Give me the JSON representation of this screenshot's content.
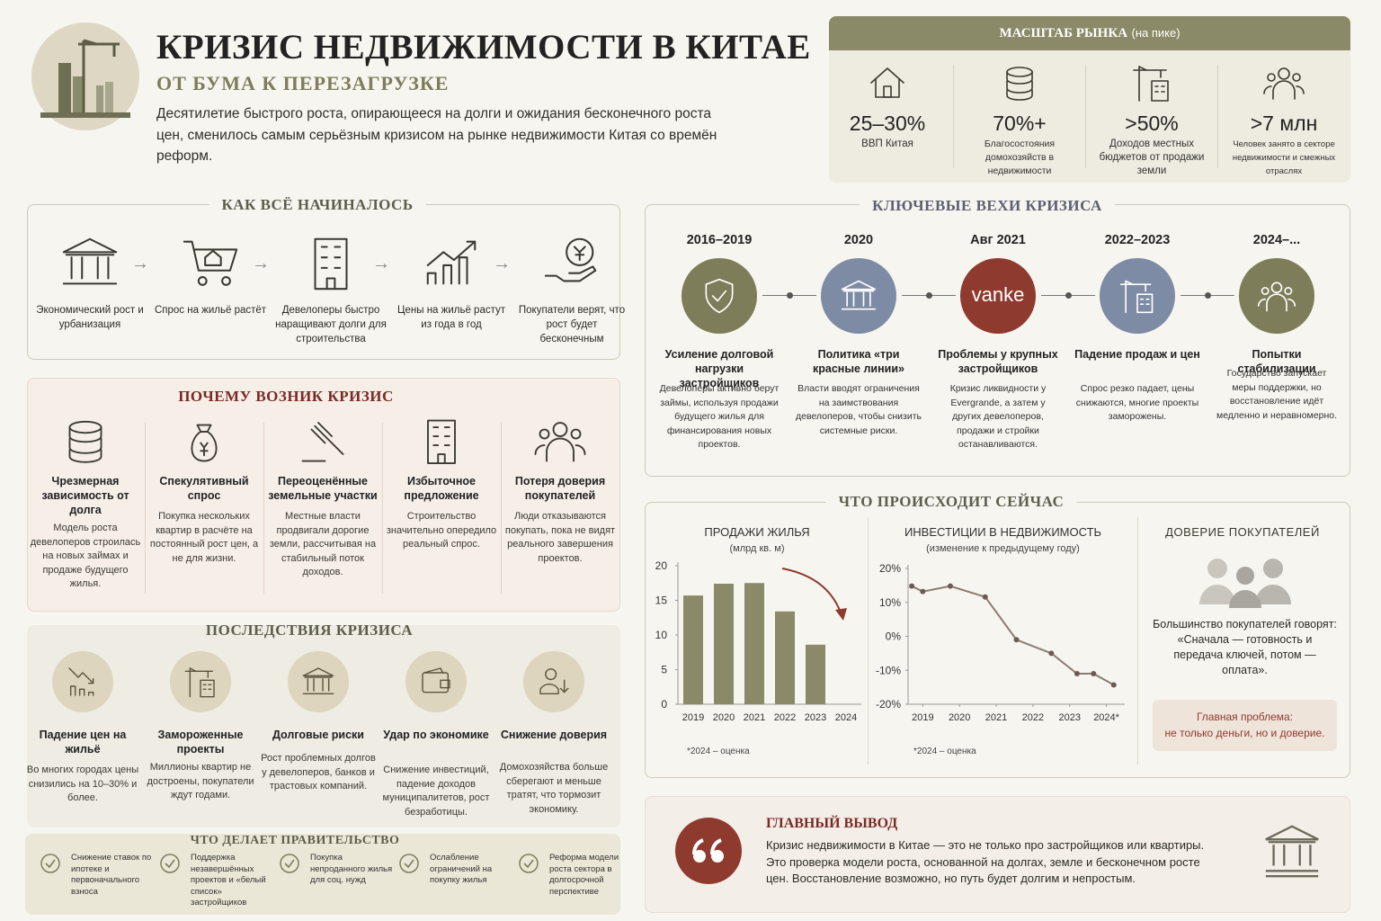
{
  "header": {
    "title": "КРИЗИС НЕДВИЖИМОСТИ В КИТАЕ",
    "subtitle": "ОТ БУМА К ПЕРЕЗАГРУЗКЕ",
    "description": "Десятилетие быстрого роста, опирающееся на долги и ожидания бесконечного роста цен, сменилось самым серьёзным кризисом на рынке недвижимости Китая со времён реформ."
  },
  "market": {
    "title": "МАСШТАБ РЫНКА",
    "title_note": "(на пике)",
    "items": [
      {
        "value": "25–30%",
        "label": "ВВП Китая"
      },
      {
        "value": "70%+",
        "label": "Благосостояния домохозяйств в недвижимости"
      },
      {
        "value": ">50%",
        "label": "Доходов местных бюджетов от продажи земли"
      },
      {
        "value": ">7 млн",
        "label": "Человек занято в секторе недвижимости и смежных отраслях"
      }
    ]
  },
  "start": {
    "title": "КАК ВСЁ НАЧИНАЛОСЬ",
    "steps": [
      "Экономический рост и урбанизация",
      "Спрос на жильё растёт",
      "Девелоперы быстро наращивают долги для строительства",
      "Цены на жильё растут из года в год",
      "Покупатели верят, что рост будет бесконечным"
    ]
  },
  "causes": {
    "title": "ПОЧЕМУ ВОЗНИК КРИЗИС",
    "items": [
      {
        "title": "Чрезмерная зависимость от долга",
        "text": "Модель роста девелоперов строилась на новых займах и продаже будущего жилья."
      },
      {
        "title": "Спекулятивный спрос",
        "text": "Покупка нескольких квартир в расчёте на постоянный рост цен, а не для жизни."
      },
      {
        "title": "Переоценённые земельные участки",
        "text": "Местные власти продвигали дорогие земли, рассчитывая на стабильный поток доходов."
      },
      {
        "title": "Избыточное предложение",
        "text": "Строительство значительно опередило реальный спрос."
      },
      {
        "title": "Потеря доверия покупателей",
        "text": "Люди отказываются покупать, пока не видят реального завершения проектов."
      }
    ]
  },
  "consequences": {
    "title": "ПОСЛЕДСТВИЯ КРИЗИСА",
    "items": [
      {
        "title": "Падение цен на жильё",
        "text": "Во многих городах цены снизились на 10–30% и более."
      },
      {
        "title": "Замороженные проекты",
        "text": "Миллионы квартир не достроены, покупатели ждут годами."
      },
      {
        "title": "Долговые риски",
        "text": "Рост проблемных долгов у девелоперов, банков и трастовых компаний."
      },
      {
        "title": "Удар по экономике",
        "text": "Снижение инвестиций, падение доходов муниципалитетов, рост безработицы."
      },
      {
        "title": "Снижение доверия",
        "text": "Домохозяйства больше сберегают и меньше тратят, что тормозит экономику."
      }
    ]
  },
  "government": {
    "title": "ЧТО ДЕЛАЕТ ПРАВИТЕЛЬСТВО",
    "items": [
      "Снижение ставок по ипотеке и первоначального взноса",
      "Поддержка незавершённых проектов и «белый список» застройщиков",
      "Покупка непроданного жилья для соц. нужд",
      "Ослабление ограничений на покупку жилья",
      "Реформа модели роста сектора в долгосрочной перспективе"
    ]
  },
  "milestones": {
    "title": "КЛЮЧЕВЫЕ ВЕХИ КРИЗИСА",
    "items": [
      {
        "period": "2016–2019",
        "title": "Усиление долговой нагрузки застройщиков",
        "text": "Девелоперы активно берут займы, используя продажи будущего жилья для финансирования новых проектов."
      },
      {
        "period": "2020",
        "title": "Политика «три красные линии»",
        "text": "Власти вводят ограничения на заимствования девелоперов, чтобы снизить системные риски."
      },
      {
        "period": "Авг 2021",
        "logo": "vanke",
        "title": "Проблемы у крупных застройщиков",
        "text": "Кризис ликвидности у Evergrande, а затем у других девелоперов, продажи и стройки останавливаются."
      },
      {
        "period": "2022–2023",
        "title": "Падение продаж и цен",
        "text": "Спрос резко падает, цены снижаются, многие проекты заморожены."
      },
      {
        "period": "2024–...",
        "title": "Попытки стабилизации",
        "text": "Государство запускает меры поддержки, но восстановление идёт медленно и неравномерно."
      }
    ]
  },
  "now": {
    "title": "ЧТО ПРОИСХОДИТ СЕЙЧАС",
    "trust": {
      "title": "ДОВЕРИЕ ПОКУПАТЕЛЕЙ",
      "text": "Большинство покупателей говорят: «Сначала — готовность и передача ключей, потом — оплата».",
      "problem_label": "Главная проблема:",
      "problem_text": "не только деньги, но и доверие."
    }
  },
  "chart_data": [
    {
      "type": "bar",
      "title": "ПРОДАЖИ ЖИЛЬЯ",
      "subtitle": "(млрд кв. м)",
      "categories": [
        "2019",
        "2020",
        "2021",
        "2022",
        "2023",
        "2024"
      ],
      "values": [
        15.7,
        17.4,
        17.5,
        13.4,
        8.6,
        null
      ],
      "color": "#8a8a68",
      "ylim": [
        0,
        20
      ],
      "yticks": [
        0,
        5,
        10,
        15,
        20
      ],
      "grid": false,
      "note": "*2024 – оценка"
    },
    {
      "type": "line",
      "title": "ИНВЕСТИЦИИ В НЕДВИЖИМОСТЬ",
      "subtitle": "(изменение к предыдущему году)",
      "x": [
        2018.7,
        2019.0,
        2019.75,
        2020.7,
        2021.55,
        2022.5,
        2023.2,
        2023.65,
        2024.2
      ],
      "values": [
        14.8,
        13.2,
        14.8,
        11.6,
        -1,
        -5,
        -11,
        -11,
        -14.3
      ],
      "color": "#8a7c72",
      "xlim": [
        2018.6,
        2024.5
      ],
      "xticks": [
        2019,
        2020,
        2021,
        2022,
        2023,
        {
          "value": 2024,
          "label": "2024*"
        }
      ],
      "ylim": [
        -20,
        20
      ],
      "yticks": [
        {
          "value": -20,
          "label": "-20%"
        },
        {
          "value": -10,
          "label": "-10%"
        },
        {
          "value": 0,
          "label": "0%"
        },
        {
          "value": 10,
          "label": "10%"
        },
        {
          "value": 20,
          "label": "20%"
        }
      ],
      "grid": false,
      "note": "*2024 – оценка"
    }
  ],
  "conclusion": {
    "title": "ГЛАВНЫЙ ВЫВОД",
    "text": "Кризис недвижимости в Китае — это не только про застройщиков или квартиры. Это проверка модели роста, основанной на долгах, земле и бесконечном росте цен. Восстановление возможно, но путь будет долгим и непростым."
  }
}
